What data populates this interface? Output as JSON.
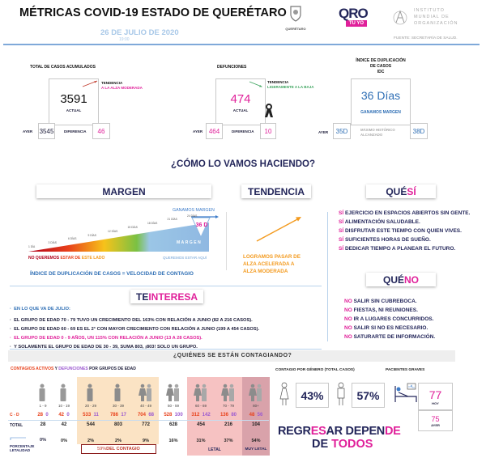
{
  "header": {
    "title": "MÉTRICAS COVID-19 ESTADO DE QUERÉTARO",
    "date": "26 DE JULIO DE 2020",
    "time": "19:00",
    "logo_queretaro": "QUERÉTARO",
    "logo_qro": "QRO",
    "logo_tuyo": "TÚ YO",
    "institute": [
      "INSTITUTO",
      "MUNDIAL DE",
      "ORGANIZACIÓN"
    ],
    "source": "FUENTE: SECRETARÍA DE SALUD."
  },
  "casos": {
    "title": "TOTAL DE CASOS ACUMULADOS",
    "actual": "3591",
    "actual_label": "ACTUAL",
    "trend_label": "TENDENCIA",
    "trend": "A LA ALZA MODERADA",
    "ayer_label": "AYER",
    "ayer": "3545",
    "diff_label": "DIFERENCIA",
    "diff": "46"
  },
  "defunciones": {
    "title": "DEFUNCIONES",
    "actual": "474",
    "actual_label": "ACTUAL",
    "trend_label": "TENDENCIA",
    "trend": "LIGERAMENTE A LA BAJA",
    "ayer_label": "AYER",
    "ayer": "464",
    "diff_label": "DIFERENCIA",
    "diff": "10"
  },
  "idc": {
    "title1": "ÍNDICE DE DUPLICACIÓN",
    "title2": "DE CASOS",
    "title3": "IDC",
    "value": "36 Días",
    "sub": "GANAMOS MARGEN",
    "ayer_label": "AYER",
    "ayer": "35D",
    "max_label1": "MÁXIMO HISTÓRICO",
    "max_label2": "ALCANZADO",
    "max": "38D"
  },
  "section_title": "¿CÓMO LO VAMOS HACIENDO?",
  "margen": {
    "title": "MARGEN",
    "ticks": [
      "1 DÍA",
      "3 DÍAS",
      "6 DÍAS",
      "9 DÍAS",
      "12 DÍAS",
      "15 DÍAS",
      "18 DÍAS",
      "21 DÍAS",
      "24 DÍAS"
    ],
    "gain": "GANAMOS MARGEN",
    "value": "36 D",
    "bar_label": "MARGEN",
    "no_a": "NO QUEREMOS ",
    "no_b": "ESTAR DE ",
    "no_c": "ESTE LADO",
    "yes": "QUEREMOS ESTAR AQUÍ",
    "footer": "ÍNDICE DE DUPLICACIÓN DE CASOS = VELOCIDAD DE CONTAGIO"
  },
  "tendencia": {
    "title": "TENDENCIA",
    "text": [
      "LOGRAMOS PASAR DE",
      "ALZA ACELERADA A",
      "ALZA MODERADA"
    ]
  },
  "que_si": {
    "title_a": "QUÉ ",
    "title_b": "SÍ",
    "prefix": "SÍ",
    "items": [
      "EJERCICIO EN ESPACIOS ABIERTOS SIN GENTE.",
      "ALIMENTACIÓN SALUDABLE.",
      "DISFRUTAR ESTE TIEMPO CON QUIEN VIVES.",
      "SUFICIENTES HORAS DE SUEÑO.",
      "DEDICAR TIEMPO A PLANEAR EL FUTURO."
    ]
  },
  "que_no": {
    "title_a": "QUÉ ",
    "title_b": "NO",
    "prefix": "NO",
    "items": [
      "SALIR SIN CUBREBOCA.",
      "FIESTAS, NI REUNIONES.",
      "IR A LUGARES CONCURRIDOS.",
      "SALIR SI NO ES NECESARIO.",
      "SATURARTE DE INFORMACIÓN."
    ]
  },
  "interesa": {
    "title_a": "TE ",
    "title_b": "INTERESA",
    "intro": "EN LO QUE VA DE JULIO:",
    "items": [
      "EL GRUPO DE EDAD 70 - 79 TUVO UN CRECIMIENTO DEL 163% CON RELACIÓN A JUNIO (82 A 216 CASOS).",
      "EL GRUPO DE EDAD 60 - 69 ES EL 2° CON MAYOR CRECIMIENTO CON RELACIÓN A JUNIO (199 A 454 CASOS).",
      "EL GRUPO DE EDAD 0 - 9 AÑOS, UN 115% CON RELACIÓN A JUNIO (13 A 28 CASOS).",
      "Y SOLAMENTE EL GRUPO DE EDAD DE 30 - 39, SUMA 803, ¡803! SOLO UN GRUPO."
    ]
  },
  "quienes": {
    "title": "¿QUIÉNES SE ESTÁN CONTAGIANDO?",
    "sub_a": "CONTAGIOS ACTIVOS",
    "sub_b": " Y ",
    "sub_c": "DEFUNCIONES",
    "sub_d": " POR GRUPOS DE EDAD",
    "row_cd": "C - D",
    "row_total": "TOTAL",
    "row_pct": "PORCENTAJE LETALIDAD",
    "groups": [
      {
        "age": "1 - 9",
        "c": "28",
        "d": "0",
        "total": "28",
        "pct": "0%"
      },
      {
        "age": "10 - 19",
        "c": "42",
        "d": "0",
        "total": "42",
        "pct": "0%"
      },
      {
        "age": "20 - 29",
        "c": "533",
        "d": "11",
        "total": "544",
        "pct": "2%"
      },
      {
        "age": "30 - 39",
        "c": "786",
        "d": "17",
        "total": "803",
        "pct": "2%"
      },
      {
        "age": "40 - 49",
        "c": "704",
        "d": "68",
        "total": "772",
        "pct": "9%"
      },
      {
        "age": "50 - 59",
        "c": "528",
        "d": "100",
        "total": "628",
        "pct": "16%"
      },
      {
        "age": "60 - 69",
        "c": "312",
        "d": "142",
        "total": "454",
        "pct": "31%"
      },
      {
        "age": "70 - 79",
        "c": "136",
        "d": "80",
        "total": "216",
        "pct": "37%"
      },
      {
        "age": "80+",
        "c": "48",
        "d": "56",
        "total": "104",
        "pct": "54%"
      }
    ],
    "zero_pct": "0%",
    "contagio_a": "59%",
    "contagio_b": " DEL CONTAGIO",
    "letal": "LETAL",
    "muy_letal": "MUY LETAL"
  },
  "genero": {
    "title": "CONTAGIO POR GÉNERO (TOTAL CASOS)",
    "female": "43%",
    "male": "57%"
  },
  "graves": {
    "title": "PACIENTES GRAVES",
    "hoy": "77",
    "hoy_label": "HOY",
    "ayer": "75",
    "ayer_label": "AYER"
  },
  "slogan": {
    "l1a": "REGR",
    "l1b": "ES",
    "l1c": "AR DEPEN",
    "l1d": "DE",
    "l2a": "DE ",
    "l2b": "TODOS"
  },
  "colors": {
    "navy": "#23265a",
    "magenta": "#e0209a",
    "blue": "#2f6fb5",
    "orange": "#f39a1e",
    "green": "#3aa35c"
  }
}
